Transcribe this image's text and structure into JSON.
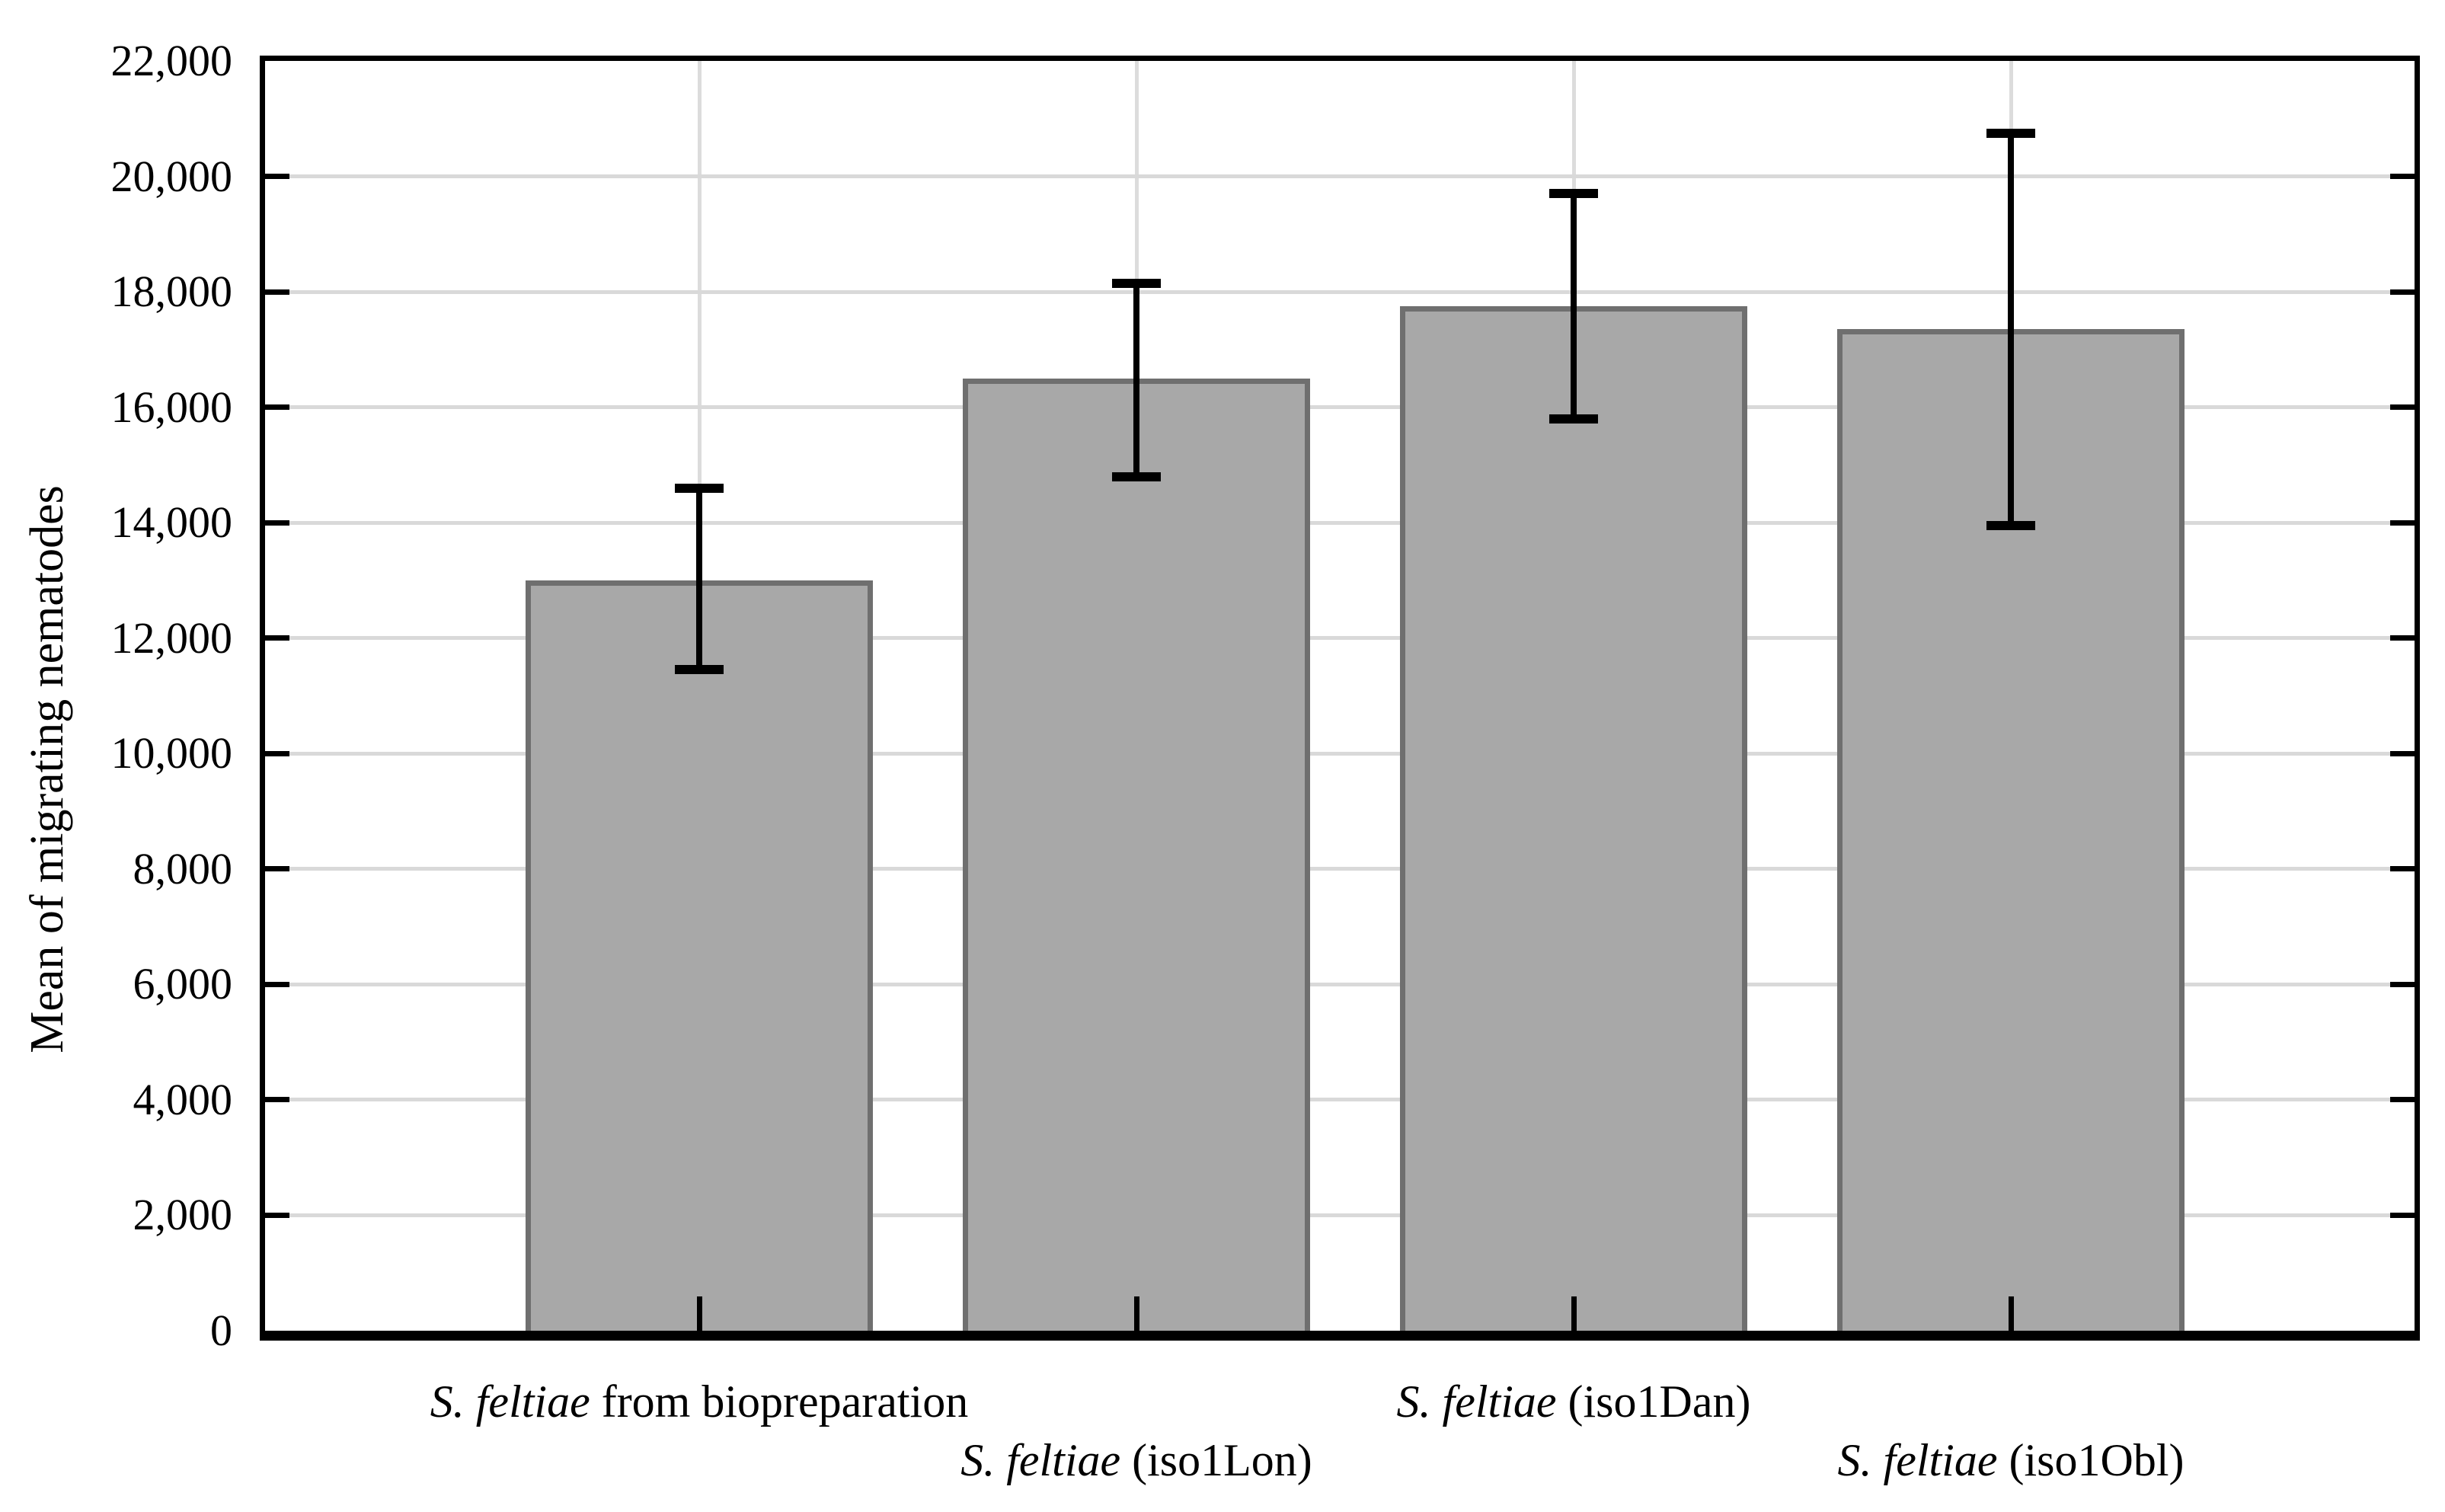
{
  "figure": {
    "ylabel": "Mean of migrating nematodes"
  },
  "chart_data": {
    "type": "bar",
    "title": "",
    "xlabel": "",
    "ylabel": "Mean of migrating nematodes",
    "ylim": [
      0,
      22000
    ],
    "ytick_step": 2000,
    "yticks": [
      0,
      2000,
      4000,
      6000,
      8000,
      10000,
      12000,
      14000,
      16000,
      18000,
      20000,
      22000
    ],
    "ytick_labels": [
      "0",
      "2,000",
      "4,000",
      "6,000",
      "8,000",
      "10,000",
      "12,000",
      "14,000",
      "16,000",
      "18,000",
      "20,000",
      "22,000"
    ],
    "grid": "on",
    "legend_position": "none",
    "bar_color": "#a8a8a8",
    "bar_border_color": "#6f6f6f",
    "error_bar_color": "#000000",
    "categories": [
      "S. feltiae from biopreparation",
      "S. feltiae (iso1Lon)",
      "S. feltiae (iso1Dan)",
      "S. feltiae (iso1Obl)"
    ],
    "categories_rich": [
      {
        "italic": "S. feltiae",
        "rest": " from biopreparation"
      },
      {
        "italic": "S. feltiae",
        "rest": " (iso1Lon)"
      },
      {
        "italic": "S. feltiae",
        "rest": " (iso1Dan)"
      },
      {
        "italic": "S. feltiae",
        "rest": " (iso1Obl)"
      }
    ],
    "values": [
      13000,
      16500,
      17750,
      17350
    ],
    "error_low": [
      11450,
      14800,
      15800,
      13950
    ],
    "error_high": [
      14600,
      18150,
      19700,
      20750
    ]
  }
}
